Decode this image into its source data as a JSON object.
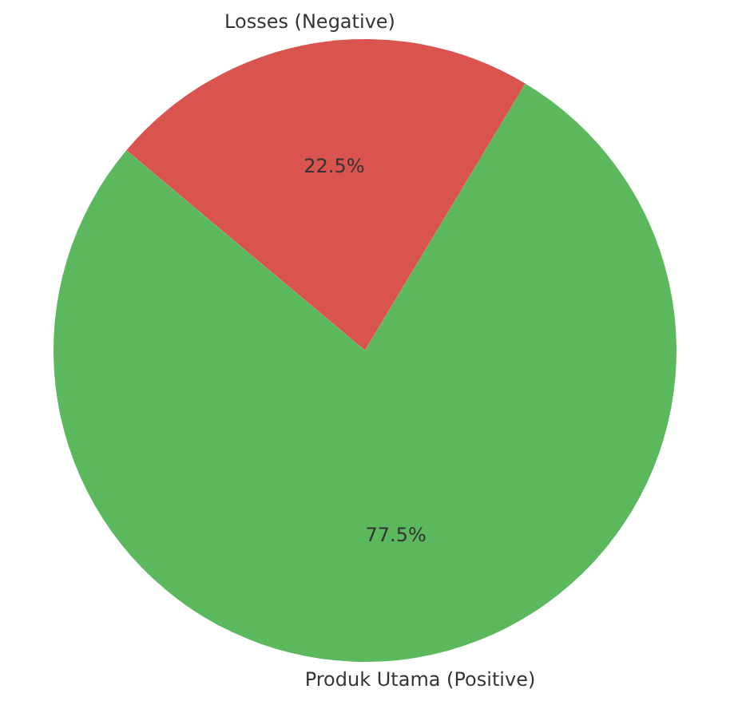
{
  "chart_data": {
    "type": "pie",
    "categories": [
      "Losses (Negative)",
      "Produk Utama (Positive)"
    ],
    "values": [
      22.5,
      77.5
    ],
    "colors": [
      "#d9534f",
      "#5cb85c"
    ],
    "value_labels": [
      "22.5%",
      "77.5%"
    ],
    "legend": false
  }
}
